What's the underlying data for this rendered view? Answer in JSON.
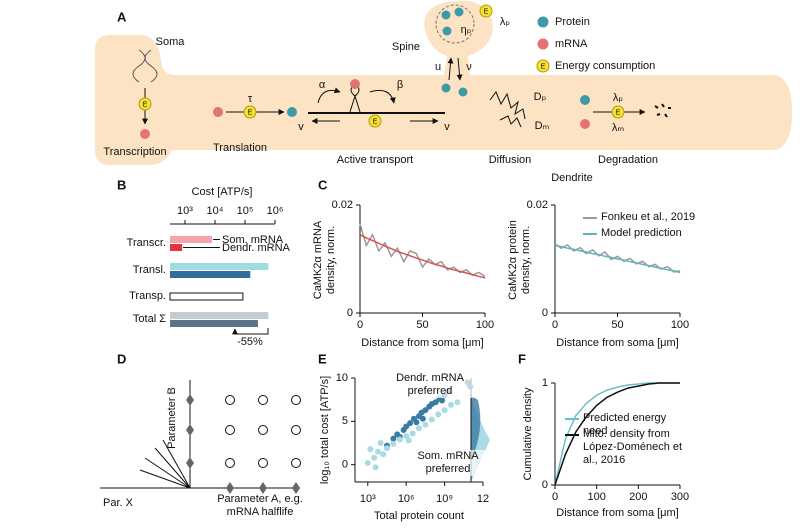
{
  "figure": {
    "panel_labels": [
      "A",
      "B",
      "C",
      "D",
      "E",
      "F"
    ],
    "a": {
      "soma": "Soma",
      "spine": "Spine",
      "dendrite": "Dendrite",
      "legend": [
        "Protein",
        "mRNA",
        "Energy consumption"
      ],
      "energy_symbol": "E",
      "processes": [
        "Transcription",
        "Translation",
        "Active transport",
        "Diffusion",
        "Degradation"
      ],
      "symbols": {
        "tau": "τ",
        "alpha": "α",
        "beta": "β",
        "v": "v",
        "u": "u",
        "nu": "ν",
        "eta_p": "ηₚ",
        "lambda_p": "λₚ",
        "lambda_m": "λₘ",
        "d_p": "Dₚ",
        "d_m": "Dₘ"
      }
    },
    "d": {
      "y_label": "Parameter B",
      "x_left": "Par. X",
      "x_label": "Parameter A, e.g. mRNA halflife"
    }
  },
  "chart_data": [
    {
      "type": "bar",
      "orientation": "horizontal",
      "x_label": "Cost [ATP/s]",
      "log_scale": true,
      "xlim": [
        316,
        1000000
      ],
      "xticks": [
        {
          "value": 1000,
          "label": "10³"
        },
        {
          "value": 10000,
          "label": "10⁴"
        },
        {
          "value": 100000,
          "label": "10⁵"
        },
        {
          "value": 1000000,
          "label": "10⁶"
        }
      ],
      "rows": [
        {
          "label": "Transcr.",
          "bars": [
            {
              "name": "Som. mRNA",
              "value": 8000,
              "color": "#f4a6aa"
            },
            {
              "name": "Dendr. mRNA",
              "value": 800,
              "color": "#e3353c"
            }
          ]
        },
        {
          "label": "Transl.",
          "bars": [
            {
              "value": 600000,
              "color": "#9fdde3"
            },
            {
              "value": 150000,
              "color": "#2f6f99"
            }
          ]
        },
        {
          "label": "Transp.",
          "bars": [
            {
              "value": 85000,
              "color": "#ffffff"
            }
          ]
        },
        {
          "label": "Total Σ",
          "bars": [
            {
              "value": 600000,
              "color": "#c5ccd3"
            },
            {
              "value": 270000,
              "color": "#5b7485"
            }
          ]
        }
      ],
      "annotation": "-55%"
    },
    {
      "type": "line",
      "y_label": "CaMK2α mRNA density, norm.",
      "x_label": "Distance from soma [μm]",
      "x": [
        0,
        5,
        10,
        15,
        20,
        25,
        30,
        35,
        40,
        45,
        50,
        55,
        60,
        65,
        70,
        75,
        80,
        85,
        90,
        95,
        100
      ],
      "xlim": [
        0,
        100
      ],
      "xticks": [
        0,
        50,
        100
      ],
      "ylim": [
        0,
        0.02
      ],
      "yticks": [
        0,
        0.02
      ],
      "series": [
        {
          "color": "#9a9a9a",
          "values": [
            0.0165,
            0.0125,
            0.0145,
            0.0115,
            0.013,
            0.0105,
            0.012,
            0.0095,
            0.0115,
            0.011,
            0.0085,
            0.01,
            0.009,
            0.0095,
            0.008,
            0.0085,
            0.0075,
            0.008,
            0.007,
            0.0075,
            0.0068
          ]
        },
        {
          "color": "#d9534f",
          "values": [
            0.0145,
            0.0139,
            0.0134,
            0.0129,
            0.0124,
            0.0119,
            0.0114,
            0.011,
            0.0106,
            0.0102,
            0.0098,
            0.0094,
            0.009,
            0.0087,
            0.0083,
            0.008,
            0.0077,
            0.0074,
            0.0071,
            0.0068,
            0.0065
          ]
        }
      ]
    },
    {
      "type": "line",
      "y_label": "CaMK2α protein density, norm.",
      "x_label": "Distance from soma [μm]",
      "x": [
        0,
        5,
        10,
        15,
        20,
        25,
        30,
        35,
        40,
        45,
        50,
        55,
        60,
        65,
        70,
        75,
        80,
        85,
        90,
        95,
        100
      ],
      "xlim": [
        0,
        100
      ],
      "xticks": [
        0,
        50,
        100
      ],
      "ylim": [
        0,
        0.02
      ],
      "yticks": [
        0,
        0.02
      ],
      "legend": "upper right",
      "series": [
        {
          "name": "Fonkeu et al., 2019",
          "color": "#9a9a9a",
          "values": [
            0.0128,
            0.012,
            0.0126,
            0.0115,
            0.0121,
            0.011,
            0.0117,
            0.0106,
            0.0113,
            0.0099,
            0.0105,
            0.0096,
            0.0101,
            0.0091,
            0.0096,
            0.0086,
            0.009,
            0.0081,
            0.0086,
            0.0076,
            0.0078
          ]
        },
        {
          "name": "Model prediction",
          "color": "#5fb3c0",
          "values": [
            0.0125,
            0.0123,
            0.012,
            0.0118,
            0.0115,
            0.0113,
            0.011,
            0.0108,
            0.0105,
            0.0103,
            0.01,
            0.0098,
            0.0095,
            0.0093,
            0.009,
            0.0088,
            0.0085,
            0.0083,
            0.008,
            0.0078,
            0.0075
          ]
        }
      ]
    },
    {
      "type": "scatter",
      "y_label": "log₁₀ total cost [ATP/s]",
      "x_label": "Total protein count",
      "xlim": [
        2,
        12
      ],
      "xticks": [
        {
          "value": 3,
          "label": "10³"
        },
        {
          "value": 6,
          "label": "10⁶"
        },
        {
          "value": 9,
          "label": "10⁹"
        },
        12
      ],
      "ylim": [
        -2,
        10
      ],
      "yticks": [
        0,
        5,
        10
      ],
      "annotations": [
        "Dendr. mRNA preferred",
        "Som. mRNA preferred"
      ],
      "series": [
        {
          "color": "#3a7ca5",
          "x": [
            4.5,
            5,
            5.3,
            5.8,
            6,
            6.3,
            6.6,
            7,
            7.2,
            7.5,
            7.8,
            8,
            8.3,
            8.6,
            9,
            9.3,
            10.8,
            11,
            6.8,
            5.5,
            7.3,
            8.8
          ],
          "y": [
            2.2,
            3,
            3.5,
            4,
            4.4,
            4.8,
            5.3,
            5.6,
            6,
            6.3,
            6.7,
            7,
            7.2,
            7.6,
            8,
            8.5,
            9.5,
            9,
            4.9,
            3.2,
            5.3,
            7.4
          ]
        },
        {
          "color": "#a8dbe3",
          "x": [
            3,
            3.5,
            3.8,
            4.2,
            4.5,
            5,
            5.5,
            6,
            6.5,
            7,
            7.5,
            8,
            8.5,
            9,
            9.5,
            3.2,
            4,
            10,
            6.2,
            3.6
          ],
          "y": [
            0.2,
            0.8,
            1.5,
            1.2,
            1.9,
            2.4,
            2.9,
            3.3,
            3.6,
            4.2,
            4.6,
            5.2,
            5.8,
            6.3,
            6.9,
            1.8,
            2.5,
            7.2,
            2.8,
            -0.3
          ]
        }
      ]
    },
    {
      "type": "line",
      "y_label": "Cumulative density",
      "x_label": "Distance from soma [μm]",
      "x": [
        0,
        25,
        50,
        75,
        100,
        125,
        150,
        175,
        200,
        225,
        250,
        275,
        300
      ],
      "xlim": [
        0,
        300
      ],
      "xticks": [
        0,
        100,
        200,
        300
      ],
      "ylim": [
        0,
        1
      ],
      "yticks": [
        0,
        1
      ],
      "legend": "center right",
      "series": [
        {
          "name": "Predicted energy need",
          "color": "#6bbfc9",
          "values": [
            0,
            0.45,
            0.68,
            0.8,
            0.88,
            0.93,
            0.96,
            0.98,
            0.99,
            1,
            1,
            1,
            1
          ]
        },
        {
          "name": "Mito. density from López-Doménech et al., 2016",
          "color": "#111111",
          "values": [
            0,
            0.3,
            0.52,
            0.67,
            0.78,
            0.86,
            0.91,
            0.95,
            0.97,
            0.99,
            1,
            1,
            1
          ]
        }
      ]
    }
  ]
}
